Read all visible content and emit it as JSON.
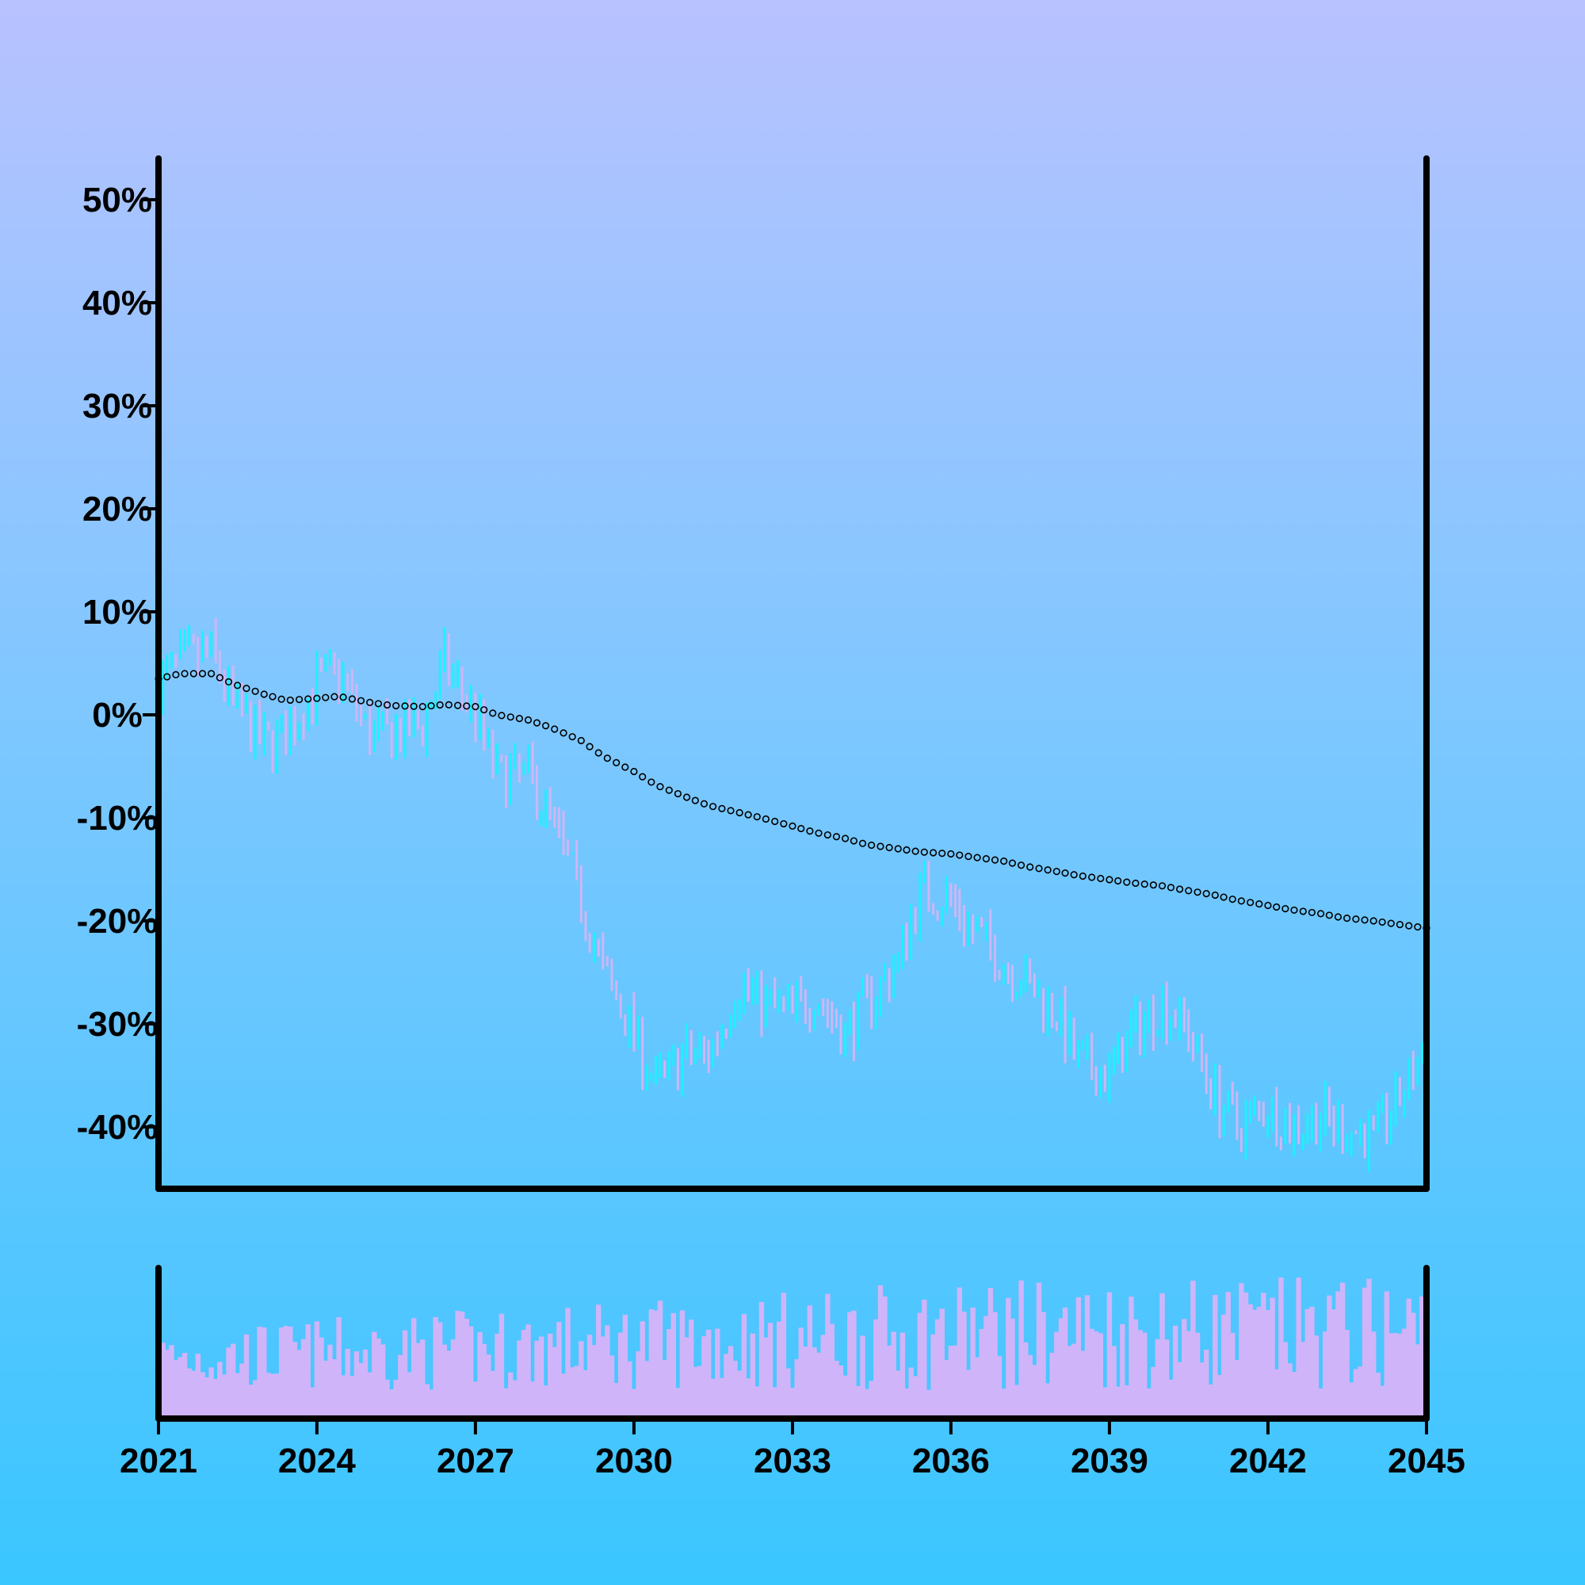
{
  "chart_data": {
    "type": "ohlc",
    "title": "",
    "xlabel": "",
    "ylabel": "",
    "x_range": [
      "2021-01-01",
      "2045-01-01"
    ],
    "ylim": [
      -0.46,
      0.54
    ],
    "y_ticks": [
      {
        "value": 0.5,
        "label": "50%"
      },
      {
        "value": 0.4,
        "label": "40%"
      },
      {
        "value": 0.3,
        "label": "30%"
      },
      {
        "value": 0.2,
        "label": "20%"
      },
      {
        "value": 0.1,
        "label": "10%"
      },
      {
        "value": 0.0,
        "label": "0%"
      },
      {
        "value": -0.1,
        "label": "-10%"
      },
      {
        "value": -0.2,
        "label": "-20%"
      },
      {
        "value": -0.3,
        "label": "-30%"
      },
      {
        "value": -0.4,
        "label": "-40%"
      }
    ],
    "x_ticks": [
      {
        "value": "2021-01-01",
        "label": "2021"
      },
      {
        "value": "2024-01-01",
        "label": "2024"
      },
      {
        "value": "2027-01-01",
        "label": "2027"
      },
      {
        "value": "2030-01-01",
        "label": "2030"
      },
      {
        "value": "2033-01-01",
        "label": "2033"
      },
      {
        "value": "2036-01-01",
        "label": "2036"
      },
      {
        "value": "2039-01-01",
        "label": "2039"
      },
      {
        "value": "2042-01-01",
        "label": "2042"
      },
      {
        "value": "2045-01-01",
        "label": "2045"
      }
    ],
    "grid": false,
    "legend": "none",
    "colors": {
      "up": "#1ef0ff",
      "down": "#cdb6f5",
      "volume": "#d0b4fa",
      "moving_average": "#000000",
      "axis": "#000000"
    },
    "price_keyframes": [
      [
        "2021-01-01",
        0.03
      ],
      [
        "2021-06-01",
        0.05
      ],
      [
        "2022-01-01",
        0.06
      ],
      [
        "2022-06-01",
        0.01
      ],
      [
        "2023-01-01",
        -0.03
      ],
      [
        "2023-06-01",
        -0.02
      ],
      [
        "2024-01-01",
        0.03
      ],
      [
        "2024-06-01",
        0.04
      ],
      [
        "2025-01-01",
        -0.02
      ],
      [
        "2025-06-01",
        -0.02
      ],
      [
        "2026-01-01",
        -0.01
      ],
      [
        "2026-06-01",
        0.05
      ],
      [
        "2027-01-01",
        0.0
      ],
      [
        "2027-06-01",
        -0.06
      ],
      [
        "2028-01-01",
        -0.06
      ],
      [
        "2028-06-01",
        -0.1
      ],
      [
        "2029-01-01",
        -0.18
      ],
      [
        "2029-06-01",
        -0.25
      ],
      [
        "2030-01-01",
        -0.31
      ],
      [
        "2030-06-01",
        -0.36
      ],
      [
        "2031-01-01",
        -0.33
      ],
      [
        "2031-06-01",
        -0.33
      ],
      [
        "2032-01-01",
        -0.26
      ],
      [
        "2032-06-01",
        -0.28
      ],
      [
        "2033-01-01",
        -0.29
      ],
      [
        "2033-06-01",
        -0.27
      ],
      [
        "2034-01-01",
        -0.31
      ],
      [
        "2034-06-01",
        -0.28
      ],
      [
        "2035-01-01",
        -0.24
      ],
      [
        "2035-06-01",
        -0.17
      ],
      [
        "2036-01-01",
        -0.18
      ],
      [
        "2036-06-01",
        -0.21
      ],
      [
        "2037-01-01",
        -0.24
      ],
      [
        "2037-06-01",
        -0.26
      ],
      [
        "2038-01-01",
        -0.29
      ],
      [
        "2038-06-01",
        -0.34
      ],
      [
        "2039-01-01",
        -0.35
      ],
      [
        "2039-06-01",
        -0.31
      ],
      [
        "2040-01-01",
        -0.28
      ],
      [
        "2040-06-01",
        -0.3
      ],
      [
        "2041-01-01",
        -0.37
      ],
      [
        "2041-06-01",
        -0.4
      ],
      [
        "2042-01-01",
        -0.38
      ],
      [
        "2042-06-01",
        -0.4
      ],
      [
        "2043-01-01",
        -0.39
      ],
      [
        "2043-06-01",
        -0.4
      ],
      [
        "2044-01-01",
        -0.41
      ],
      [
        "2044-06-01",
        -0.38
      ],
      [
        "2045-01-01",
        -0.32
      ]
    ],
    "moving_average_keyframes": [
      [
        "2021-01-01",
        0.035
      ],
      [
        "2021-06-01",
        0.04
      ],
      [
        "2022-01-01",
        0.04
      ],
      [
        "2022-06-01",
        0.03
      ],
      [
        "2023-01-01",
        0.02
      ],
      [
        "2023-06-01",
        0.014
      ],
      [
        "2024-01-01",
        0.016
      ],
      [
        "2024-06-01",
        0.018
      ],
      [
        "2025-01-01",
        0.012
      ],
      [
        "2025-06-01",
        0.009
      ],
      [
        "2026-01-01",
        0.008
      ],
      [
        "2026-06-01",
        0.01
      ],
      [
        "2027-01-01",
        0.008
      ],
      [
        "2027-06-01",
        0.0
      ],
      [
        "2028-01-01",
        -0.005
      ],
      [
        "2028-06-01",
        -0.012
      ],
      [
        "2029-01-01",
        -0.025
      ],
      [
        "2029-06-01",
        -0.04
      ],
      [
        "2030-01-01",
        -0.055
      ],
      [
        "2030-06-01",
        -0.068
      ],
      [
        "2031-01-01",
        -0.08
      ],
      [
        "2031-06-01",
        -0.088
      ],
      [
        "2032-01-01",
        -0.095
      ],
      [
        "2032-06-01",
        -0.1
      ],
      [
        "2033-01-01",
        -0.108
      ],
      [
        "2033-06-01",
        -0.114
      ],
      [
        "2034-01-01",
        -0.12
      ],
      [
        "2034-06-01",
        -0.126
      ],
      [
        "2035-01-01",
        -0.13
      ],
      [
        "2035-06-01",
        -0.133
      ],
      [
        "2036-01-01",
        -0.135
      ],
      [
        "2036-06-01",
        -0.138
      ],
      [
        "2037-01-01",
        -0.142
      ],
      [
        "2037-06-01",
        -0.147
      ],
      [
        "2038-01-01",
        -0.152
      ],
      [
        "2038-06-01",
        -0.156
      ],
      [
        "2039-01-01",
        -0.16
      ],
      [
        "2039-06-01",
        -0.163
      ],
      [
        "2040-01-01",
        -0.166
      ],
      [
        "2040-06-01",
        -0.17
      ],
      [
        "2041-01-01",
        -0.175
      ],
      [
        "2041-06-01",
        -0.18
      ],
      [
        "2042-01-01",
        -0.185
      ],
      [
        "2042-06-01",
        -0.189
      ],
      [
        "2043-01-01",
        -0.193
      ],
      [
        "2043-06-01",
        -0.197
      ],
      [
        "2044-01-01",
        -0.2
      ],
      [
        "2044-06-01",
        -0.203
      ],
      [
        "2045-01-01",
        -0.207
      ]
    ],
    "bar_interval_months": 1,
    "moving_average_interval_months": 2
  }
}
